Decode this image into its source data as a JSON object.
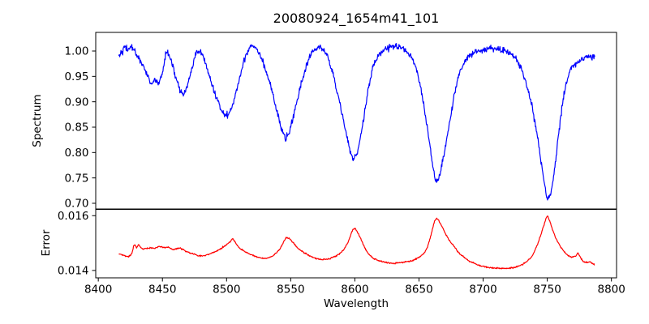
{
  "title": "20080924_1654m41_101",
  "xaxis": {
    "label": "Wavelength"
  },
  "panels_labels": {
    "top": "Spectrum",
    "bottom": "Error"
  },
  "colors": {
    "spectrum_line": "#0000ff",
    "error_line": "#ff0000",
    "axes": "#000000",
    "background": "#ffffff"
  },
  "chart_data": {
    "type": "line",
    "title": "20080924_1654m41_101",
    "xlabel": "Wavelength",
    "xlim": [
      8398,
      8804
    ],
    "xticks": [
      8400,
      8450,
      8500,
      8550,
      8600,
      8650,
      8700,
      8750,
      8800
    ],
    "xtick_labels": [
      "8400",
      "8450",
      "8500",
      "8550",
      "8600",
      "8650",
      "8700",
      "8750",
      "8800"
    ],
    "x_data_range": [
      8416,
      8787
    ],
    "samples": 1100,
    "noise_seed": 42,
    "grid": false,
    "legend": "none",
    "panels": [
      {
        "name": "spectrum",
        "ylabel": "Spectrum",
        "ylim": [
          0.6888,
          1.0367
        ],
        "yticks": [
          1.0,
          0.95,
          0.9,
          0.85,
          0.8,
          0.75,
          0.7
        ],
        "ytick_labels": [
          "1.00",
          "0.95",
          "0.90",
          "0.85",
          "0.80",
          "0.75",
          "0.70"
        ],
        "series": {
          "name": "spectrum",
          "color": "#0000ff",
          "noise_sigma": 0.003,
          "keypoints": [
            [
              8416,
              0.992
            ],
            [
              8419,
              1.002
            ],
            [
              8421,
              1.008
            ],
            [
              8423,
              1.001
            ],
            [
              8425,
              1.01
            ],
            [
              8427,
              1.004
            ],
            [
              8429,
              0.997
            ],
            [
              8432,
              0.985
            ],
            [
              8435,
              0.971
            ],
            [
              8438,
              0.952
            ],
            [
              8441,
              0.936
            ],
            [
              8444,
              0.943
            ],
            [
              8447,
              0.936
            ],
            [
              8450,
              0.955
            ],
            [
              8453,
              1.0
            ],
            [
              8456,
              0.99
            ],
            [
              8460,
              0.95
            ],
            [
              8464,
              0.921
            ],
            [
              8466,
              0.914
            ],
            [
              8469,
              0.926
            ],
            [
              8473,
              0.965
            ],
            [
              8477,
              1.002
            ],
            [
              8481,
              0.995
            ],
            [
              8486,
              0.955
            ],
            [
              8491,
              0.915
            ],
            [
              8496,
              0.885
            ],
            [
              8500,
              0.872
            ],
            [
              8504,
              0.885
            ],
            [
              8509,
              0.935
            ],
            [
              8514,
              0.985
            ],
            [
              8519,
              1.013
            ],
            [
              8524,
              1.005
            ],
            [
              8529,
              0.975
            ],
            [
              8534,
              0.935
            ],
            [
              8539,
              0.885
            ],
            [
              8543,
              0.843
            ],
            [
              8546,
              0.827
            ],
            [
              8549,
              0.838
            ],
            [
              8553,
              0.88
            ],
            [
              8558,
              0.935
            ],
            [
              8563,
              0.978
            ],
            [
              8568,
              1.003
            ],
            [
              8573,
              1.008
            ],
            [
              8578,
              0.995
            ],
            [
              8583,
              0.955
            ],
            [
              8588,
              0.9
            ],
            [
              8593,
              0.84
            ],
            [
              8597,
              0.795
            ],
            [
              8599,
              0.787
            ],
            [
              8602,
              0.8
            ],
            [
              8606,
              0.85
            ],
            [
              8610,
              0.92
            ],
            [
              8614,
              0.968
            ],
            [
              8618,
              0.992
            ],
            [
              8624,
              1.005
            ],
            [
              8630,
              1.01
            ],
            [
              8636,
              1.005
            ],
            [
              8641,
              0.998
            ],
            [
              8645,
              0.985
            ],
            [
              8649,
              0.955
            ],
            [
              8653,
              0.905
            ],
            [
              8657,
              0.84
            ],
            [
              8661,
              0.768
            ],
            [
              8663,
              0.741
            ],
            [
              8666,
              0.752
            ],
            [
              8670,
              0.8
            ],
            [
              8674,
              0.862
            ],
            [
              8678,
              0.92
            ],
            [
              8682,
              0.96
            ],
            [
              8687,
              0.985
            ],
            [
              8693,
              0.998
            ],
            [
              8700,
              1.003
            ],
            [
              8710,
              1.005
            ],
            [
              8718,
              1.0
            ],
            [
              8724,
              0.99
            ],
            [
              8729,
              0.97
            ],
            [
              8734,
              0.935
            ],
            [
              8739,
              0.88
            ],
            [
              8743,
              0.82
            ],
            [
              8747,
              0.75
            ],
            [
              8750,
              0.706
            ],
            [
              8753,
              0.72
            ],
            [
              8756,
              0.77
            ],
            [
              8759,
              0.84
            ],
            [
              8762,
              0.9
            ],
            [
              8765,
              0.94
            ],
            [
              8768,
              0.965
            ],
            [
              8772,
              0.975
            ],
            [
              8776,
              0.982
            ],
            [
              8780,
              0.988
            ],
            [
              8783,
              0.99
            ],
            [
              8787,
              0.985
            ]
          ]
        }
      },
      {
        "name": "error",
        "ylabel": "Error",
        "ylim": [
          0.01373,
          0.01623
        ],
        "yticks": [
          0.016,
          0.014
        ],
        "ytick_labels": [
          "0.016",
          "0.014"
        ],
        "series": {
          "name": "error",
          "color": "#ff0000",
          "noise_sigma": 1.3e-05,
          "keypoints": [
            [
              8416,
              0.01462
            ],
            [
              8420,
              0.01455
            ],
            [
              8423,
              0.01449
            ],
            [
              8426,
              0.01457
            ],
            [
              8428,
              0.015
            ],
            [
              8430,
              0.01478
            ],
            [
              8431,
              0.01498
            ],
            [
              8434,
              0.01478
            ],
            [
              8437,
              0.0148
            ],
            [
              8440,
              0.01483
            ],
            [
              8444,
              0.01481
            ],
            [
              8448,
              0.01488
            ],
            [
              8451,
              0.01483
            ],
            [
              8455,
              0.01485
            ],
            [
              8458,
              0.01475
            ],
            [
              8462,
              0.01482
            ],
            [
              8465,
              0.0148
            ],
            [
              8468,
              0.0147
            ],
            [
              8472,
              0.01463
            ],
            [
              8476,
              0.01457
            ],
            [
              8480,
              0.01452
            ],
            [
              8484,
              0.01455
            ],
            [
              8488,
              0.01463
            ],
            [
              8492,
              0.0147
            ],
            [
              8496,
              0.0148
            ],
            [
              8500,
              0.01495
            ],
            [
              8503,
              0.01505
            ],
            [
              8505,
              0.01518
            ],
            [
              8507,
              0.015
            ],
            [
              8510,
              0.01482
            ],
            [
              8514,
              0.0147
            ],
            [
              8518,
              0.0146
            ],
            [
              8522,
              0.01452
            ],
            [
              8526,
              0.01446
            ],
            [
              8530,
              0.01444
            ],
            [
              8534,
              0.01448
            ],
            [
              8538,
              0.0146
            ],
            [
              8542,
              0.0148
            ],
            [
              8545,
              0.0151
            ],
            [
              8547,
              0.01522
            ],
            [
              8550,
              0.01512
            ],
            [
              8553,
              0.01495
            ],
            [
              8556,
              0.0148
            ],
            [
              8560,
              0.01465
            ],
            [
              8564,
              0.01455
            ],
            [
              8568,
              0.01446
            ],
            [
              8572,
              0.01441
            ],
            [
              8576,
              0.0144
            ],
            [
              8580,
              0.01443
            ],
            [
              8584,
              0.0145
            ],
            [
              8588,
              0.0146
            ],
            [
              8592,
              0.0148
            ],
            [
              8595,
              0.01505
            ],
            [
              8598,
              0.01548
            ],
            [
              8600,
              0.01555
            ],
            [
              8602,
              0.0154
            ],
            [
              8605,
              0.01512
            ],
            [
              8608,
              0.0148
            ],
            [
              8611,
              0.01458
            ],
            [
              8614,
              0.01445
            ],
            [
              8618,
              0.01437
            ],
            [
              8622,
              0.01432
            ],
            [
              8626,
              0.01428
            ],
            [
              8630,
              0.01426
            ],
            [
              8634,
              0.01428
            ],
            [
              8638,
              0.0143
            ],
            [
              8642,
              0.01432
            ],
            [
              8646,
              0.01438
            ],
            [
              8650,
              0.01448
            ],
            [
              8654,
              0.01462
            ],
            [
              8657,
              0.0149
            ],
            [
              8660,
              0.0154
            ],
            [
              8662,
              0.0158
            ],
            [
              8664,
              0.01592
            ],
            [
              8666,
              0.01578
            ],
            [
              8668,
              0.0156
            ],
            [
              8671,
              0.0153
            ],
            [
              8674,
              0.01508
            ],
            [
              8677,
              0.0149
            ],
            [
              8680,
              0.0147
            ],
            [
              8684,
              0.01452
            ],
            [
              8688,
              0.01438
            ],
            [
              8692,
              0.01428
            ],
            [
              8696,
              0.0142
            ],
            [
              8700,
              0.01415
            ],
            [
              8705,
              0.0141
            ],
            [
              8710,
              0.01408
            ],
            [
              8715,
              0.01407
            ],
            [
              8720,
              0.01408
            ],
            [
              8725,
              0.01412
            ],
            [
              8730,
              0.0142
            ],
            [
              8734,
              0.01432
            ],
            [
              8738,
              0.0145
            ],
            [
              8742,
              0.0149
            ],
            [
              8745,
              0.0153
            ],
            [
              8748,
              0.01575
            ],
            [
              8750,
              0.01603
            ],
            [
              8752,
              0.0158
            ],
            [
              8754,
              0.0155
            ],
            [
              8757,
              0.01515
            ],
            [
              8760,
              0.01488
            ],
            [
              8763,
              0.0147
            ],
            [
              8766,
              0.01455
            ],
            [
              8769,
              0.01448
            ],
            [
              8772,
              0.01452
            ],
            [
              8774,
              0.01465
            ],
            [
              8776,
              0.01445
            ],
            [
              8778,
              0.01432
            ],
            [
              8781,
              0.01428
            ],
            [
              8783,
              0.01432
            ],
            [
              8787,
              0.0142
            ]
          ]
        }
      }
    ]
  }
}
